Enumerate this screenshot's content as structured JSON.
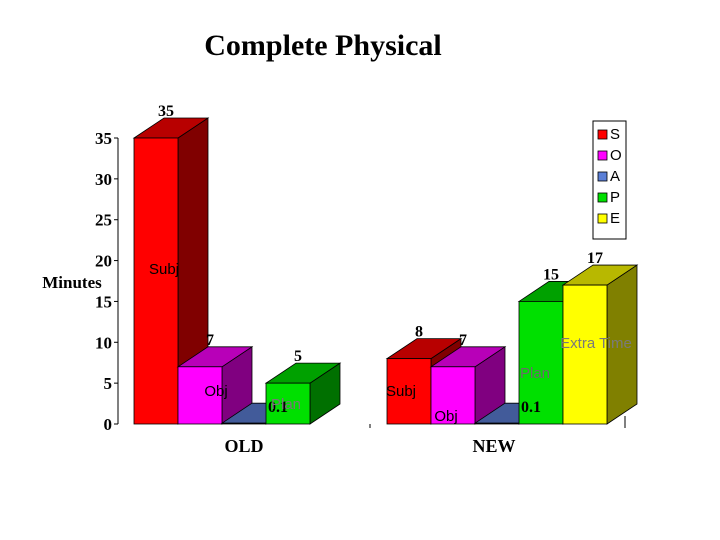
{
  "title": "Complete Physical",
  "chart_data": {
    "type": "bar",
    "title": "Complete Physical",
    "xlabel": "",
    "ylabel": "Minutes",
    "ylim": [
      0,
      35
    ],
    "yticks": [
      0,
      5,
      10,
      15,
      20,
      25,
      30,
      35
    ],
    "grid": false,
    "legend_position": "top-right",
    "categories": [
      "OLD",
      "NEW"
    ],
    "series": [
      {
        "name": "S",
        "color": "#ff0000",
        "values": [
          35,
          8
        ]
      },
      {
        "name": "O",
        "color": "#ff00ff",
        "values": [
          7,
          7
        ]
      },
      {
        "name": "A",
        "color": "#5b7fd6",
        "values": [
          0.1,
          0.1
        ]
      },
      {
        "name": "P",
        "color": "#00e000",
        "values": [
          5,
          15
        ]
      },
      {
        "name": "E",
        "color": "#ffff00",
        "values": [
          null,
          17
        ]
      }
    ],
    "data_labels": [
      [
        "35",
        "7",
        "0.1",
        "5",
        null
      ],
      [
        "8",
        "7",
        "0.1",
        "15",
        "17"
      ]
    ],
    "annotations": [
      {
        "text": "Subj",
        "category": "OLD",
        "series": "S"
      },
      {
        "text": "Obj",
        "category": "OLD",
        "series": "O"
      },
      {
        "text": "Plan",
        "category": "OLD",
        "series": "P"
      },
      {
        "text": "Subj",
        "category": "NEW",
        "series": "S"
      },
      {
        "text": "Obj",
        "category": "NEW",
        "series": "O"
      },
      {
        "text": "Plan",
        "category": "NEW",
        "series": "P"
      },
      {
        "text": "Extra Time",
        "category": "NEW",
        "series": "E"
      }
    ]
  }
}
